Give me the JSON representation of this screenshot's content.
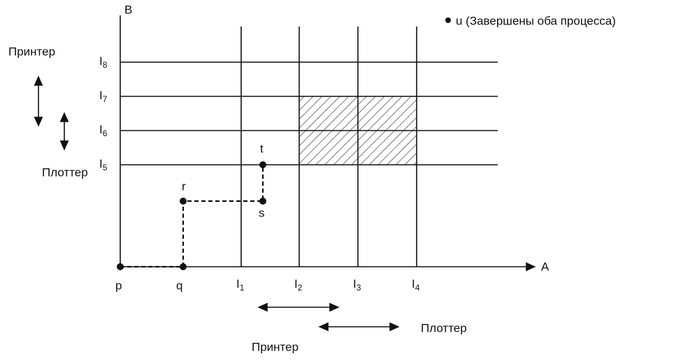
{
  "axes": {
    "y_label": "B",
    "x_label": "A"
  },
  "legend": "u (Завершены оба процесса)",
  "left_resources": {
    "printer": "Принтер",
    "plotter": "Плоттер"
  },
  "levels_b": [
    {
      "base": "I",
      "sub": "8"
    },
    {
      "base": "I",
      "sub": "7"
    },
    {
      "base": "I",
      "sub": "6"
    },
    {
      "base": "I",
      "sub": "5"
    }
  ],
  "levels_a": [
    {
      "base": "I",
      "sub": "1"
    },
    {
      "base": "I",
      "sub": "2"
    },
    {
      "base": "I",
      "sub": "3"
    },
    {
      "base": "I",
      "sub": "4"
    }
  ],
  "points": [
    "p",
    "q",
    "r",
    "s",
    "t"
  ],
  "bottom_resources": {
    "printer": "Принтер",
    "plotter": "Плоттер"
  }
}
